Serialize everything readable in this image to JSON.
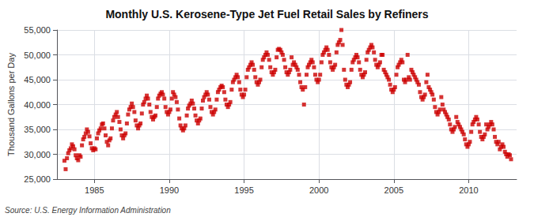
{
  "chart_data": {
    "type": "scatter",
    "title": "Monthly U.S. Kerosene-Type Jet Fuel Retail Sales by Refiners",
    "ylabel": "Thousand Gallons per Day",
    "annotations": [
      "Source: U.S. Energy Information Administration"
    ],
    "color": "#cc0000",
    "marker": "square",
    "grid": true,
    "xlim": [
      1982.5,
      2013.2
    ],
    "xticks": [
      1985,
      1990,
      1995,
      2000,
      2005,
      2010
    ],
    "ylim": [
      25000,
      55000
    ],
    "yticks": [
      {
        "value": 25000,
        "label": "25,000"
      },
      {
        "value": 30000,
        "label": "30,000"
      },
      {
        "value": 35000,
        "label": "35,000"
      },
      {
        "value": 40000,
        "label": "40,000"
      },
      {
        "value": 45000,
        "label": "45,000"
      },
      {
        "value": 50000,
        "label": "50,000"
      },
      {
        "value": 55000,
        "label": "55,000"
      }
    ],
    "x": [
      1983.0,
      1983.08,
      1983.17,
      1983.25,
      1983.33,
      1983.42,
      1983.5,
      1983.58,
      1983.67,
      1983.75,
      1983.83,
      1983.92,
      1984.0,
      1984.08,
      1984.17,
      1984.25,
      1984.33,
      1984.42,
      1984.5,
      1984.58,
      1984.67,
      1984.75,
      1984.83,
      1984.92,
      1985.0,
      1985.08,
      1985.17,
      1985.25,
      1985.33,
      1985.42,
      1985.5,
      1985.58,
      1985.67,
      1985.75,
      1985.83,
      1985.92,
      1986.0,
      1986.08,
      1986.17,
      1986.25,
      1986.33,
      1986.42,
      1986.5,
      1986.58,
      1986.67,
      1986.75,
      1986.83,
      1986.92,
      1987.0,
      1987.08,
      1987.17,
      1987.25,
      1987.33,
      1987.42,
      1987.5,
      1987.58,
      1987.67,
      1987.75,
      1987.83,
      1987.92,
      1988.0,
      1988.08,
      1988.17,
      1988.25,
      1988.33,
      1988.42,
      1988.5,
      1988.58,
      1988.67,
      1988.75,
      1988.83,
      1988.92,
      1989.0,
      1989.08,
      1989.17,
      1989.25,
      1989.33,
      1989.42,
      1989.5,
      1989.58,
      1989.67,
      1989.75,
      1989.83,
      1989.92,
      1990.0,
      1990.08,
      1990.17,
      1990.25,
      1990.33,
      1990.42,
      1990.5,
      1990.58,
      1990.67,
      1990.75,
      1990.83,
      1990.92,
      1991.0,
      1991.08,
      1991.17,
      1991.25,
      1991.33,
      1991.42,
      1991.5,
      1991.58,
      1991.67,
      1991.75,
      1991.83,
      1991.92,
      1992.0,
      1992.08,
      1992.17,
      1992.25,
      1992.33,
      1992.42,
      1992.5,
      1992.58,
      1992.67,
      1992.75,
      1992.83,
      1992.92,
      1993.0,
      1993.08,
      1993.17,
      1993.25,
      1993.33,
      1993.42,
      1993.5,
      1993.58,
      1993.67,
      1993.75,
      1993.83,
      1993.92,
      1994.0,
      1994.08,
      1994.17,
      1994.25,
      1994.33,
      1994.42,
      1994.5,
      1994.58,
      1994.67,
      1994.75,
      1994.83,
      1994.92,
      1995.0,
      1995.08,
      1995.17,
      1995.25,
      1995.33,
      1995.42,
      1995.5,
      1995.58,
      1995.67,
      1995.75,
      1995.83,
      1995.92,
      1996.0,
      1996.08,
      1996.17,
      1996.25,
      1996.33,
      1996.42,
      1996.5,
      1996.58,
      1996.67,
      1996.75,
      1996.83,
      1996.92,
      1997.0,
      1997.08,
      1997.17,
      1997.25,
      1997.33,
      1997.42,
      1997.5,
      1997.58,
      1997.67,
      1997.75,
      1997.83,
      1997.92,
      1998.0,
      1998.08,
      1998.17,
      1998.25,
      1998.33,
      1998.42,
      1998.5,
      1998.58,
      1998.67,
      1998.75,
      1998.83,
      1998.92,
      1999.0,
      1999.08,
      1999.17,
      1999.25,
      1999.33,
      1999.42,
      1999.5,
      1999.58,
      1999.67,
      1999.75,
      1999.83,
      1999.92,
      2000.0,
      2000.08,
      2000.17,
      2000.25,
      2000.33,
      2000.42,
      2000.5,
      2000.58,
      2000.67,
      2000.75,
      2000.83,
      2000.92,
      2001.0,
      2001.08,
      2001.17,
      2001.25,
      2001.33,
      2001.42,
      2001.5,
      2001.58,
      2001.67,
      2001.75,
      2001.83,
      2001.92,
      2002.0,
      2002.08,
      2002.17,
      2002.25,
      2002.33,
      2002.42,
      2002.5,
      2002.58,
      2002.67,
      2002.75,
      2002.83,
      2002.92,
      2003.0,
      2003.08,
      2003.17,
      2003.25,
      2003.33,
      2003.42,
      2003.5,
      2003.58,
      2003.67,
      2003.75,
      2003.83,
      2003.92,
      2004.0,
      2004.08,
      2004.17,
      2004.25,
      2004.33,
      2004.42,
      2004.5,
      2004.58,
      2004.67,
      2004.75,
      2004.83,
      2004.92,
      2005.0,
      2005.08,
      2005.17,
      2005.25,
      2005.33,
      2005.42,
      2005.5,
      2005.58,
      2005.67,
      2005.75,
      2005.83,
      2005.92,
      2006.0,
      2006.08,
      2006.17,
      2006.25,
      2006.33,
      2006.42,
      2006.5,
      2006.58,
      2006.67,
      2006.75,
      2006.83,
      2006.92,
      2007.0,
      2007.08,
      2007.17,
      2007.25,
      2007.33,
      2007.42,
      2007.5,
      2007.58,
      2007.67,
      2007.75,
      2007.83,
      2007.92,
      2008.0,
      2008.08,
      2008.17,
      2008.25,
      2008.33,
      2008.42,
      2008.5,
      2008.58,
      2008.67,
      2008.75,
      2008.83,
      2008.92,
      2009.0,
      2009.08,
      2009.17,
      2009.25,
      2009.33,
      2009.42,
      2009.5,
      2009.58,
      2009.67,
      2009.75,
      2009.83,
      2009.92,
      2010.0,
      2010.08,
      2010.17,
      2010.25,
      2010.33,
      2010.42,
      2010.5,
      2010.58,
      2010.67,
      2010.75,
      2010.83,
      2010.92,
      2011.0,
      2011.08,
      2011.17,
      2011.25,
      2011.33,
      2011.42,
      2011.5,
      2011.58,
      2011.67,
      2011.75,
      2011.83,
      2011.92,
      2012.0,
      2012.08,
      2012.17,
      2012.25,
      2012.33,
      2012.42,
      2012.5,
      2012.58,
      2012.67,
      2012.75,
      2012.83
    ],
    "values": [
      28700,
      27000,
      29200,
      30200,
      30800,
      31200,
      32000,
      31600,
      31000,
      29800,
      29200,
      28800,
      29800,
      29500,
      31800,
      33000,
      33500,
      34200,
      35000,
      34500,
      33600,
      32200,
      31200,
      30800,
      31200,
      31000,
      33200,
      34200,
      34800,
      35200,
      36000,
      36200,
      35200,
      33800,
      32500,
      31800,
      32800,
      33200,
      35200,
      36800,
      37500,
      38000,
      38500,
      37500,
      36500,
      35000,
      33800,
      33200,
      33800,
      34200,
      36200,
      38000,
      39000,
      39500,
      40200,
      39500,
      38500,
      36800,
      35800,
      35200,
      35800,
      36200,
      38200,
      40000,
      40500,
      41200,
      41800,
      41200,
      40000,
      38500,
      37500,
      37000,
      37500,
      37800,
      39500,
      41200,
      41800,
      42200,
      42500,
      42000,
      41200,
      39500,
      38500,
      38000,
      38500,
      39000,
      41200,
      42500,
      42000,
      41500,
      40500,
      39000,
      37200,
      35800,
      35200,
      34800,
      35200,
      35800,
      37800,
      39200,
      39800,
      40200,
      40800,
      40200,
      39200,
      37800,
      36800,
      36200,
      36800,
      37200,
      39200,
      40800,
      41500,
      42000,
      42500,
      42000,
      41000,
      39500,
      38500,
      38000,
      38500,
      39000,
      41000,
      42500,
      43000,
      43500,
      43800,
      43500,
      42500,
      41000,
      40000,
      39500,
      40000,
      40500,
      43000,
      44500,
      45000,
      45500,
      46000,
      45500,
      44500,
      43000,
      42000,
      41500,
      42000,
      43000,
      45500,
      47000,
      47500,
      48000,
      48500,
      48000,
      47000,
      45500,
      44500,
      44000,
      44500,
      45000,
      47500,
      49000,
      49500,
      50000,
      50500,
      50000,
      49000,
      47500,
      46500,
      46000,
      46500,
      47000,
      49500,
      51000,
      51200,
      51000,
      50500,
      50000,
      49000,
      47500,
      46500,
      46000,
      46500,
      47000,
      49500,
      48000,
      48500,
      48000,
      47500,
      47000,
      46000,
      44500,
      43500,
      43000,
      40000,
      43500,
      46000,
      47500,
      48000,
      48500,
      49000,
      48500,
      47500,
      46000,
      45000,
      44500,
      45000,
      46000,
      48500,
      50000,
      50500,
      51000,
      51500,
      51000,
      50000,
      48500,
      47500,
      47000,
      47500,
      48000,
      50500,
      52000,
      52500,
      53000,
      55000,
      52000,
      47000,
      45000,
      44000,
      43500,
      44000,
      44500,
      47000,
      48500,
      49000,
      49500,
      50000,
      49500,
      48500,
      47000,
      46000,
      45500,
      46000,
      46500,
      49000,
      50500,
      51000,
      51500,
      52000,
      51500,
      50500,
      49000,
      48000,
      47500,
      48000,
      48500,
      50000,
      50000,
      47000,
      46500,
      46000,
      45500,
      45000,
      44000,
      43000,
      42500,
      43000,
      43500,
      46000,
      47500,
      48000,
      48500,
      49000,
      48500,
      45000,
      44500,
      45000,
      50000,
      45500,
      45000,
      47000,
      46500,
      46000,
      45500,
      45000,
      44500,
      44000,
      42500,
      41500,
      41000,
      41500,
      42000,
      44500,
      46000,
      43500,
      43000,
      42500,
      42000,
      41000,
      39500,
      38500,
      38000,
      38500,
      39000,
      41500,
      40000,
      39000,
      38500,
      38000,
      37500,
      37000,
      36000,
      35000,
      34500,
      35000,
      35500,
      37500,
      36500,
      36000,
      35500,
      35000,
      34500,
      34000,
      33000,
      32000,
      31500,
      32000,
      32500,
      34500,
      36000,
      36500,
      37000,
      37500,
      37000,
      36000,
      34500,
      33500,
      33000,
      33500,
      34000,
      36000,
      35000,
      35500,
      36000,
      36500,
      36000,
      35000,
      33500,
      32500,
      32000,
      32500,
      31000,
      31500,
      32000,
      31500,
      30500,
      30000,
      29500,
      30000,
      29800,
      29000
    ]
  }
}
